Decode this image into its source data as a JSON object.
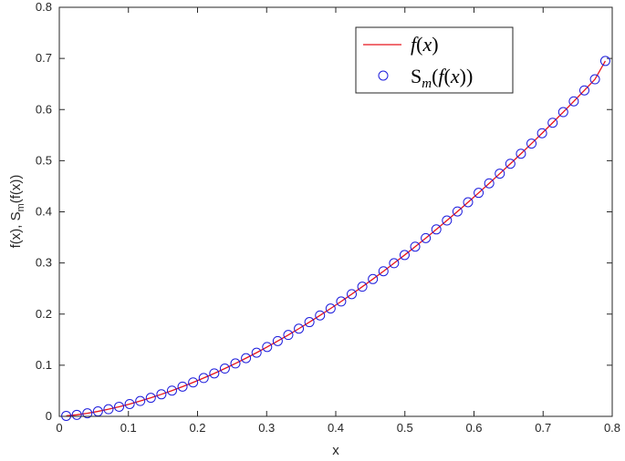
{
  "chart_data": {
    "type": "line",
    "xlabel": "x",
    "ylabel": "f(x), S",
    "ylabel_sub": "m",
    "ylabel_end": "(f(x))",
    "xlim": [
      0,
      0.8
    ],
    "ylim": [
      0,
      0.8
    ],
    "xticks": [
      "0",
      "0.1",
      "0.2",
      "0.3",
      "0.4",
      "0.5",
      "0.6",
      "0.7",
      "0.8"
    ],
    "yticks": [
      "0",
      "0.1",
      "0.2",
      "0.3",
      "0.4",
      "0.5",
      "0.6",
      "0.7",
      "0.8"
    ],
    "grid": false,
    "legend_position": "top-right",
    "x": [
      0.01,
      0.0253,
      0.0406,
      0.0559,
      0.0712,
      0.0865,
      0.1018,
      0.1171,
      0.1324,
      0.1477,
      0.163,
      0.1783,
      0.1936,
      0.2089,
      0.2242,
      0.2395,
      0.2548,
      0.2701,
      0.2854,
      0.3007,
      0.316,
      0.3313,
      0.3466,
      0.3619,
      0.3772,
      0.3925,
      0.4078,
      0.4231,
      0.4384,
      0.4537,
      0.469,
      0.4843,
      0.4996,
      0.5149,
      0.5302,
      0.5455,
      0.5608,
      0.5761,
      0.5914,
      0.6067,
      0.622,
      0.6373,
      0.6526,
      0.6679,
      0.6832,
      0.6985,
      0.7138,
      0.7291,
      0.7444,
      0.7597,
      0.775,
      0.79
    ],
    "series": [
      {
        "name": "f(x)",
        "style": "line",
        "color": "#e8141c",
        "values": [
          0.001,
          0.003,
          0.006,
          0.0097,
          0.014,
          0.0188,
          0.0241,
          0.03,
          0.0363,
          0.0431,
          0.0504,
          0.0582,
          0.0664,
          0.075,
          0.084,
          0.0935,
          0.1035,
          0.1138,
          0.1245,
          0.1357,
          0.1473,
          0.1592,
          0.1715,
          0.1843,
          0.1974,
          0.2109,
          0.2247,
          0.239,
          0.2536,
          0.2685,
          0.2838,
          0.2995,
          0.3155,
          0.3319,
          0.3486,
          0.3656,
          0.383,
          0.4007,
          0.4187,
          0.4371,
          0.4557,
          0.4747,
          0.494,
          0.5136,
          0.5335,
          0.5537,
          0.5742,
          0.595,
          0.6161,
          0.6375,
          0.6592,
          0.695
        ]
      },
      {
        "name": "S_m(f(x))",
        "style": "marker",
        "color": "#1c1cdc",
        "values": [
          0.001,
          0.003,
          0.006,
          0.0097,
          0.014,
          0.0188,
          0.0241,
          0.03,
          0.0363,
          0.0431,
          0.0504,
          0.0582,
          0.0664,
          0.075,
          0.084,
          0.0935,
          0.1035,
          0.1138,
          0.1245,
          0.1357,
          0.1473,
          0.1592,
          0.1715,
          0.1843,
          0.1974,
          0.2109,
          0.2247,
          0.239,
          0.2536,
          0.2685,
          0.2838,
          0.2995,
          0.3155,
          0.3319,
          0.3486,
          0.3656,
          0.383,
          0.4007,
          0.4187,
          0.4371,
          0.4557,
          0.4747,
          0.494,
          0.5136,
          0.5335,
          0.5537,
          0.5742,
          0.595,
          0.6161,
          0.6375,
          0.6592,
          0.695
        ]
      }
    ]
  }
}
